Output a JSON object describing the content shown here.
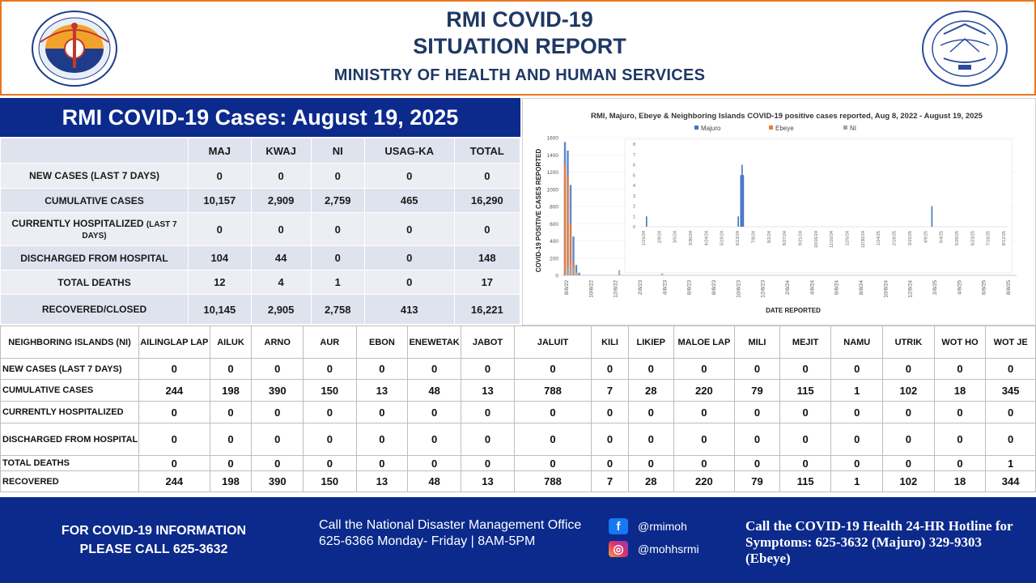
{
  "header": {
    "title_line1": "RMI COVID-19",
    "title_line2": "SITUATION REPORT",
    "ministry": "MINISTRY OF HEALTH AND HUMAN SERVICES",
    "accent_color": "#1f3864",
    "border_color": "#e87722"
  },
  "cases": {
    "banner": "RMI COVID-19 Cases: August 19, 2025",
    "columns": [
      "",
      "MAJ",
      "KWAJ",
      "NI",
      "USAG-KA",
      "TOTAL"
    ],
    "rows": [
      {
        "label": "NEW CASES (LAST 7 DAYS)",
        "label_small": "",
        "values": [
          "0",
          "0",
          "0",
          "0",
          "0"
        ]
      },
      {
        "label": "CUMULATIVE CASES",
        "label_small": "",
        "values": [
          "10,157",
          "2,909",
          "2,759",
          "465",
          "16,290"
        ]
      },
      {
        "label": "CURRENTLY HOSPITALIZED ",
        "label_small": "(LAST 7 DAYS)",
        "values": [
          "0",
          "0",
          "0",
          "0",
          "0"
        ]
      },
      {
        "label": "DISCHARGED FROM HOSPITAL",
        "label_small": "",
        "values": [
          "104",
          "44",
          "0",
          "0",
          "148"
        ]
      },
      {
        "label": "TOTAL DEATHS",
        "label_small": "",
        "values": [
          "12",
          "4",
          "1",
          "0",
          "17"
        ]
      },
      {
        "label": "RECOVERED/CLOSED",
        "label_small": "",
        "values": [
          "10,145",
          "2,905",
          "2,758",
          "413",
          "16,221"
        ]
      }
    ]
  },
  "chart": {
    "title": "RMI, Majuro, Ebeye & Neighboring Islands COVID-19 positive cases reported, Aug 8, 2022 - August 19, 2025",
    "ylabel": "COVID-19 POSITIVE CASES REPORTED",
    "xlabel": "DATE REPORTED",
    "legend": [
      {
        "name": "Majuro",
        "color": "#4472c4"
      },
      {
        "name": "Ebeye",
        "color": "#ed7d31"
      },
      {
        "name": "NI",
        "color": "#a5a5a5"
      }
    ],
    "y_ticks": [
      "0",
      "200",
      "400",
      "600",
      "800",
      "1000",
      "1200",
      "1400",
      "1600"
    ],
    "x_ticks": [
      "8/8/22",
      "10/8/22",
      "12/8/22",
      "2/8/23",
      "4/8/23",
      "6/8/23",
      "8/8/23",
      "10/8/23",
      "12/8/23",
      "2/8/24",
      "4/8/24",
      "6/8/24",
      "8/8/24",
      "10/8/24",
      "12/8/24",
      "2/8/25",
      "4/8/25",
      "6/8/25",
      "8/8/25"
    ],
    "inset_y_ticks": [
      "0",
      "1",
      "2",
      "3",
      "4",
      "5",
      "6",
      "7",
      "8"
    ],
    "inset_x_ticks": [
      "1/15/24",
      "2/9/24",
      "3/5/24",
      "3/30/24",
      "4/24/24",
      "5/19/24",
      "6/13/24",
      "7/8/24",
      "8/2/24",
      "8/27/24",
      "9/21/24",
      "10/16/24",
      "11/10/24",
      "12/5/24",
      "12/30/24",
      "1/24/25",
      "2/18/25",
      "3/15/25",
      "4/9/25",
      "5/4/25",
      "5/29/25",
      "6/23/25",
      "7/18/25",
      "8/12/25"
    ]
  },
  "chart_data": {
    "type": "bar",
    "title": "RMI, Majuro, Ebeye & Neighboring Islands COVID-19 positive cases reported, Aug 8, 2022 - August 19, 2025",
    "xlabel": "DATE REPORTED",
    "ylabel": "COVID-19 POSITIVE CASES REPORTED",
    "ylim": [
      0,
      1600
    ],
    "series": [
      {
        "name": "Majuro",
        "x": [
          "2022-08-08",
          "2022-08-15",
          "2022-08-22",
          "2022-08-29",
          "2022-09-05",
          "2022-09-12"
        ],
        "values": [
          1550,
          1450,
          1050,
          450,
          120,
          30
        ]
      },
      {
        "name": "Ebeye",
        "x": [
          "2022-08-08",
          "2022-08-15",
          "2022-08-22",
          "2022-08-29",
          "2022-09-05"
        ],
        "values": [
          1300,
          1150,
          600,
          150,
          40
        ]
      },
      {
        "name": "NI",
        "x": [
          "2022-08-15",
          "2022-08-22",
          "2022-08-29",
          "2022-09-05",
          "2022-12-20",
          "2023-04-05"
        ],
        "values": [
          100,
          120,
          80,
          40,
          60,
          20
        ]
      }
    ],
    "inset": {
      "ylim": [
        0,
        8
      ],
      "x": [
        "2024-01-25",
        "2024-06-18",
        "2024-06-22",
        "2024-06-24",
        "2024-06-26",
        "2025-04-20"
      ],
      "values": [
        1,
        1,
        5,
        6,
        5,
        2
      ]
    },
    "legend_position": "top-center"
  },
  "ni": {
    "header_label": "NEIGHBORING ISLANDS (NI)",
    "islands": [
      "AILINGLAP LAP",
      "AILUK",
      "ARNO",
      "AUR",
      "EBON",
      "ENEWETAK",
      "JABOT",
      "JALUIT",
      "KILI",
      "LIKIEP",
      "MALOE LAP",
      "MILI",
      "MEJIT",
      "NAMU",
      "UTRIK",
      "WOT HO",
      "WOT JE"
    ],
    "rows": [
      {
        "label": "NEW CASES (LAST 7 DAYS)",
        "values": [
          "0",
          "0",
          "0",
          "0",
          "0",
          "0",
          "0",
          "0",
          "0",
          "0",
          "0",
          "0",
          "0",
          "0",
          "0",
          "0",
          "0"
        ]
      },
      {
        "label": "CUMULATIVE CASES",
        "values": [
          "244",
          "198",
          "390",
          "150",
          "13",
          "48",
          "13",
          "788",
          "7",
          "28",
          "220",
          "79",
          "115",
          "1",
          "102",
          "18",
          "345"
        ]
      },
      {
        "label": "CURRENTLY HOSPITALIZED",
        "values": [
          "0",
          "0",
          "0",
          "0",
          "0",
          "0",
          "0",
          "0",
          "0",
          "0",
          "0",
          "0",
          "0",
          "0",
          "0",
          "0",
          "0"
        ]
      },
      {
        "label": "DISCHARGED FROM HOSPITAL",
        "values": [
          "0",
          "0",
          "0",
          "0",
          "0",
          "0",
          "0",
          "0",
          "0",
          "0",
          "0",
          "0",
          "0",
          "0",
          "0",
          "0",
          "0"
        ]
      },
      {
        "label": "TOTAL DEATHS",
        "values": [
          "0",
          "0",
          "0",
          "0",
          "0",
          "0",
          "0",
          "0",
          "0",
          "0",
          "0",
          "0",
          "0",
          "0",
          "0",
          "0",
          "1"
        ]
      },
      {
        "label": "RECOVERED",
        "values": [
          "244",
          "198",
          "390",
          "150",
          "13",
          "48",
          "13",
          "788",
          "7",
          "28",
          "220",
          "79",
          "115",
          "1",
          "102",
          "18",
          "344"
        ]
      }
    ]
  },
  "footer": {
    "info_line1": "FOR COVID-19 INFORMATION",
    "info_line2": "PLEASE CALL 625-3632",
    "ndmo": "Call the National Disaster Management Office 625-6366 Monday- Friday | 8AM-5PM",
    "facebook": "@rmimoh",
    "instagram": "@mohhsrmi",
    "hotline": "Call the COVID-19 Health 24-HR Hotline for Symptoms: 625-3632 (Majuro)  329-9303  (Ebeye)",
    "bg_color": "#0b2a8c"
  }
}
